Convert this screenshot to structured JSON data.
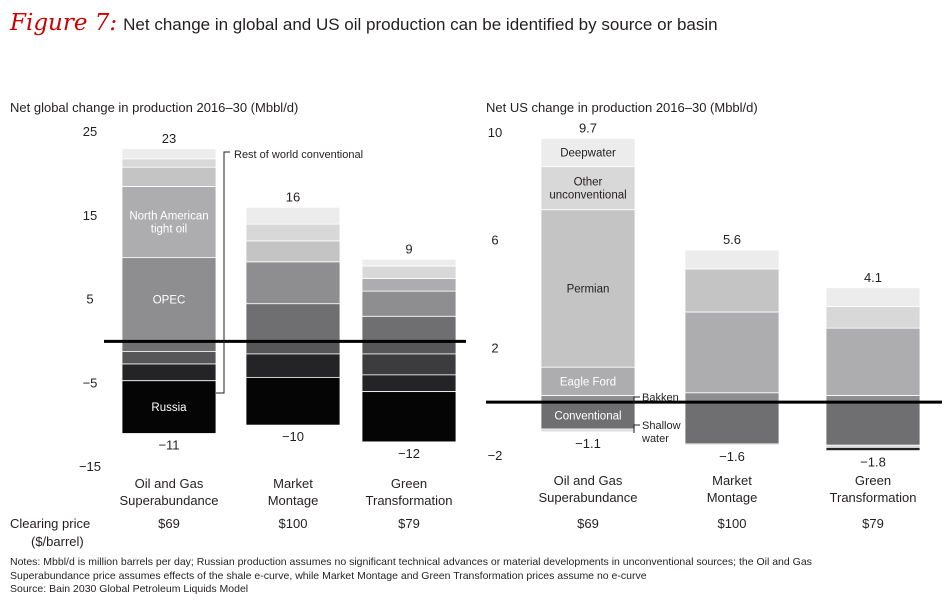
{
  "figure": {
    "label": "Figure 7:",
    "title": "Net change in global and US oil production can be identified by source or basin"
  },
  "price_row": {
    "label_line1": "Clearing price",
    "label_line2": "($/barrel)"
  },
  "notes": {
    "line1": "Notes: Mbbl/d is million barrels per day; Russian production assumes no significant technical advances or material developments in unconventional sources; the Oil and Gas",
    "line2": "Superabundance price assumes effects of the shale e-curve, while Market Montage and Green Transformation prices assume no e-curve",
    "source": "Source: Bain 2030 Global Petroleum Liquids Model"
  },
  "colors": {
    "c1": "#ececec",
    "c2": "#d8d8d9",
    "c3": "#c4c4c5",
    "c4": "#adadaf",
    "c5": "#8e8e90",
    "c6": "#6f6f71",
    "c7": "#565658",
    "c8": "#3c3c3e",
    "c9": "#242426",
    "c10": "#050505"
  },
  "chart_data": [
    {
      "type": "bar",
      "stacked": true,
      "title": "Net global change in production 2016–30 (Mbbl/d)",
      "ylim": [
        -15,
        25
      ],
      "yticks": [
        25,
        15,
        5,
        -5,
        -15
      ],
      "categories": [
        {
          "line1": "Oil and Gas",
          "line2": "Superabundance",
          "price": "$69",
          "total_pos": "23",
          "total_neg": "−11"
        },
        {
          "line1": "Market",
          "line2": "Montage",
          "price": "$100",
          "total_pos": "16",
          "total_neg": "−10"
        },
        {
          "line1": "Green",
          "line2": "Transformation",
          "price": "$79",
          "total_pos": "9",
          "total_neg": "−12"
        }
      ],
      "stacks": [
        {
          "pos": [
            {
              "name": "OPEC",
              "v": 10,
              "c": "c5"
            },
            {
              "name": "North American tight oil",
              "v": 8.5,
              "c": "c4"
            },
            {
              "v": 2.3,
              "c": "c3"
            },
            {
              "v": 1,
              "c": "c2"
            },
            {
              "name": "Rest of world conventional",
              "v": 1.2,
              "c": "c1"
            }
          ],
          "neg": [
            {
              "v": -1.2,
              "c": "c6"
            },
            {
              "v": -1.5,
              "c": "c7"
            },
            {
              "v": -2,
              "c": "c9"
            },
            {
              "name": "Russia",
              "v": -6.3,
              "c": "c10"
            }
          ]
        },
        {
          "pos": [
            {
              "v": 4.5,
              "c": "c6"
            },
            {
              "v": 5,
              "c": "c5"
            },
            {
              "v": 2.5,
              "c": "c3"
            },
            {
              "v": 2,
              "c": "c2"
            },
            {
              "v": 2,
              "c": "c1"
            }
          ],
          "neg": [
            {
              "v": -1.5,
              "c": "c7"
            },
            {
              "v": -2.8,
              "c": "c9"
            },
            {
              "v": -5.7,
              "c": "c10"
            }
          ]
        },
        {
          "pos": [
            {
              "v": 3,
              "c": "c6"
            },
            {
              "v": 3,
              "c": "c5"
            },
            {
              "v": 1.5,
              "c": "c4"
            },
            {
              "v": 1.5,
              "c": "c2"
            },
            {
              "v": 0.8,
              "c": "c1"
            }
          ],
          "neg": [
            {
              "v": -1.5,
              "c": "c7"
            },
            {
              "v": -2.5,
              "c": "c8"
            },
            {
              "v": -2,
              "c": "c9"
            },
            {
              "v": -6,
              "c": "c10"
            }
          ]
        }
      ],
      "annotations": {
        "rest_of_world": "Rest of world conventional"
      }
    },
    {
      "type": "bar",
      "stacked": true,
      "title": "Net US change in production 2016–30 (Mbbl/d)",
      "ylim": [
        -2,
        10
      ],
      "yticks": [
        10,
        6,
        2,
        -2
      ],
      "categories": [
        {
          "line1": "Oil and Gas",
          "line2": "Superabundance",
          "price": "$69",
          "total_pos": "9.7",
          "total_neg": "−1.1"
        },
        {
          "line1": "Market",
          "line2": "Montage",
          "price": "$100",
          "total_pos": "5.6",
          "total_neg": "−1.6"
        },
        {
          "line1": "Green",
          "line2": "Transformation",
          "price": "$79",
          "total_pos": "4.1",
          "total_neg": "−1.8"
        }
      ],
      "stacks": [
        {
          "pos": [
            {
              "name": "Bakken",
              "v": 0.25,
              "c": "c5"
            },
            {
              "name": "Eagle Ford",
              "v": 1.05,
              "c": "c4"
            },
            {
              "name": "Permian",
              "v": 5.85,
              "c": "c3"
            },
            {
              "name": "Other unconventional",
              "v": 1.6,
              "c": "c2"
            },
            {
              "name": "Deepwater",
              "v": 1.05,
              "c": "c1"
            }
          ],
          "neg": [
            {
              "name": "Conventional",
              "v": -1.0,
              "c": "c6"
            },
            {
              "name": "Shallow water",
              "v": -0.1,
              "c": "c2"
            }
          ]
        },
        {
          "pos": [
            {
              "v": 0.35,
              "c": "c5"
            },
            {
              "v": 3.0,
              "c": "c4"
            },
            {
              "v": 1.6,
              "c": "c3"
            },
            {
              "v": 0.7,
              "c": "c1"
            }
          ],
          "neg": [
            {
              "v": -1.55,
              "c": "c6"
            },
            {
              "v": -0.05,
              "c": "c2"
            }
          ]
        },
        {
          "pos": [
            {
              "v": 0.25,
              "c": "c5"
            },
            {
              "v": 2.5,
              "c": "c4"
            },
            {
              "v": 0.8,
              "c": "c2"
            },
            {
              "v": 0.7,
              "c": "c1"
            }
          ],
          "neg": [
            {
              "v": -1.6,
              "c": "c6"
            },
            {
              "v": -0.08,
              "c": "c2"
            },
            {
              "v": -0.12,
              "c": "c9"
            }
          ]
        }
      ],
      "annotations": {
        "bakken": "Bakken",
        "shallow_line1": "Shallow",
        "shallow_line2": "water"
      }
    }
  ]
}
